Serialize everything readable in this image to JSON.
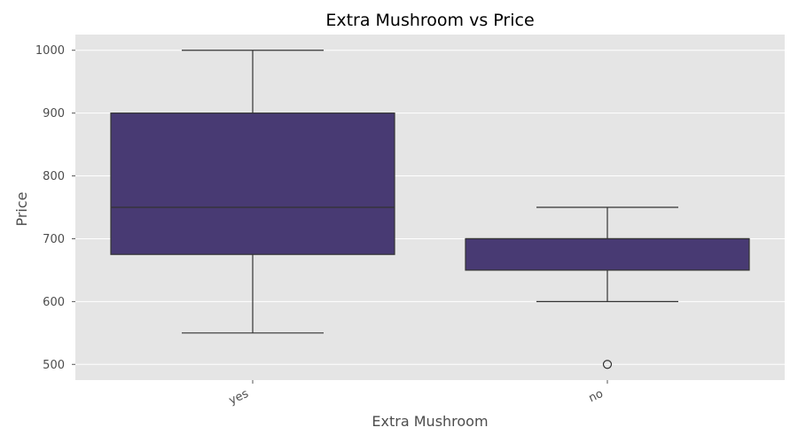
{
  "chart_data": {
    "type": "box",
    "title": "Extra Mushroom vs Price",
    "xlabel": "Extra Mushroom",
    "ylabel": "Price",
    "categories": [
      "yes",
      "no"
    ],
    "boxes": [
      {
        "category": "yes",
        "whisker_low": 550,
        "q1": 675,
        "median": 750,
        "q3": 900,
        "whisker_high": 1000,
        "outliers": []
      },
      {
        "category": "no",
        "whisker_low": 600,
        "q1": 650,
        "median": 700,
        "q3": 700,
        "whisker_high": 750,
        "outliers": [
          500
        ]
      }
    ],
    "ylim": [
      475,
      1025
    ],
    "yticks": [
      500,
      600,
      700,
      800,
      900,
      1000
    ],
    "grid": true,
    "colors": {
      "box_fill": "#483a73",
      "line": "#333333",
      "plot_bg": "#e5e5e5",
      "grid": "#ffffff"
    }
  }
}
